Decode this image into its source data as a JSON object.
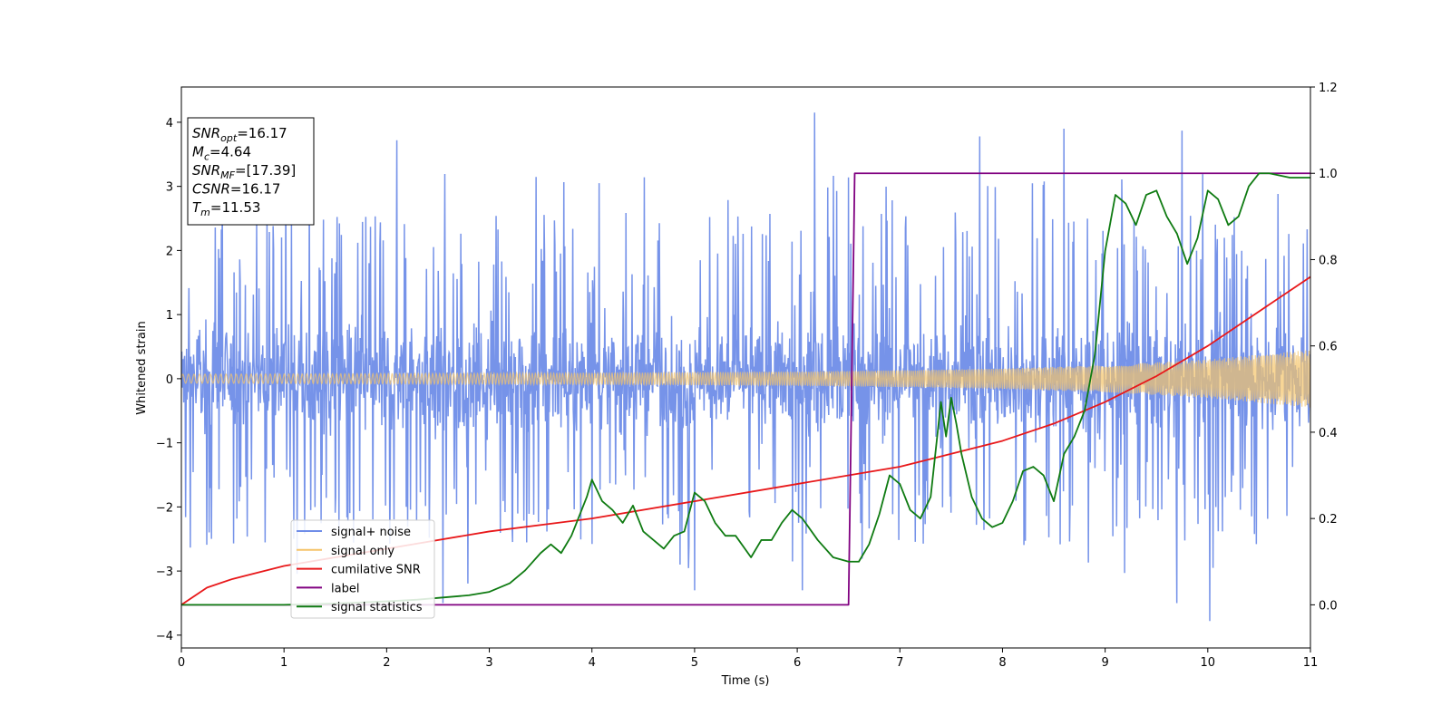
{
  "chart_data": {
    "type": "line",
    "title": "",
    "xlabel": "Time (s)",
    "ylabel": "Whitened strain",
    "xlim": [
      0,
      11
    ],
    "ylim_left": [
      -4.2,
      4.55
    ],
    "ylim_right": [
      -0.1,
      1.2
    ],
    "x_ticks": [
      0,
      1,
      2,
      3,
      4,
      5,
      6,
      7,
      8,
      9,
      10,
      11
    ],
    "y_ticks_left": [
      -4,
      -3,
      -2,
      -1,
      0,
      1,
      2,
      3,
      4
    ],
    "y_ticks_right": [
      0.0,
      0.2,
      0.4,
      0.6,
      0.8,
      1.0,
      1.2
    ],
    "grid": false,
    "legend": {
      "placement": "lower-left",
      "entries": [
        {
          "label": "signal+ noise",
          "color": "#6f8de8"
        },
        {
          "label": "signal only",
          "color": "#f5c46a"
        },
        {
          "label": "cumilative SNR",
          "color": "#e8181a"
        },
        {
          "label": "label",
          "color": "#800080"
        },
        {
          "label": "signal statistics",
          "color": "#0f7b12"
        }
      ]
    },
    "annotation": {
      "lines": [
        {
          "base": "SNR",
          "sub": "opt",
          "rest": "=16.17"
        },
        {
          "base": "M",
          "sub": "c",
          "rest": "=4.64"
        },
        {
          "base": "SNR",
          "sub": "MF",
          "rest": "=[17.39]"
        },
        {
          "base": "CSNR",
          "sub": "",
          "rest": "=16.17"
        },
        {
          "base": "T",
          "sub": "m",
          "rest": "=11.53"
        }
      ]
    },
    "series": [
      {
        "name": "signal+ noise",
        "axis": "left",
        "kind": "noise-band",
        "color": "#6f8de8",
        "x_range": [
          0,
          11
        ],
        "typical_amplitude": 1.3,
        "extremes": [
          {
            "x": 2.1,
            "y": 3.72
          },
          {
            "x": 6.17,
            "y": 4.15
          },
          {
            "x": 7.78,
            "y": 3.78
          },
          {
            "x": 8.6,
            "y": 3.9
          },
          {
            "x": 9.75,
            "y": 3.87
          },
          {
            "x": 10.02,
            "y": -3.78
          },
          {
            "x": 9.7,
            "y": -3.5
          },
          {
            "x": 2.55,
            "y": -3.5
          },
          {
            "x": 6.05,
            "y": -3.3
          },
          {
            "x": 5.0,
            "y": -3.3
          },
          {
            "x": 10.05,
            "y": -2.95
          }
        ]
      },
      {
        "name": "signal only",
        "axis": "left",
        "kind": "envelope",
        "color": "#f5c46a",
        "x": [
          0,
          1,
          2,
          3,
          4,
          5,
          6,
          7,
          8,
          9,
          10,
          11
        ],
        "amplitude": [
          0.07,
          0.075,
          0.08,
          0.085,
          0.09,
          0.1,
          0.11,
          0.13,
          0.16,
          0.21,
          0.3,
          0.45
        ]
      },
      {
        "name": "cumilative SNR",
        "axis": "right",
        "color": "#e8181a",
        "x": [
          0,
          0.25,
          0.5,
          1,
          2,
          3,
          4,
          5,
          6,
          6.5,
          7,
          7.5,
          8,
          8.5,
          9,
          9.5,
          10,
          10.5,
          11
        ],
        "y": [
          0.0,
          0.04,
          0.06,
          0.09,
          0.13,
          0.17,
          0.2,
          0.24,
          0.28,
          0.3,
          0.32,
          0.35,
          0.38,
          0.42,
          0.47,
          0.53,
          0.6,
          0.68,
          0.76
        ]
      },
      {
        "name": "label",
        "axis": "right",
        "color": "#800080",
        "x": [
          0,
          6.5,
          6.56,
          11
        ],
        "y": [
          0.0,
          0.0,
          1.0,
          1.0
        ]
      },
      {
        "name": "signal statistics",
        "axis": "right",
        "color": "#0f7b12",
        "x": [
          0,
          0.5,
          1,
          1.5,
          2,
          2.3,
          2.6,
          2.8,
          3.0,
          3.2,
          3.35,
          3.5,
          3.6,
          3.7,
          3.8,
          3.95,
          4.0,
          4.1,
          4.2,
          4.3,
          4.4,
          4.5,
          4.6,
          4.7,
          4.8,
          4.9,
          5.0,
          5.1,
          5.2,
          5.3,
          5.4,
          5.55,
          5.65,
          5.75,
          5.85,
          5.95,
          6.05,
          6.2,
          6.35,
          6.5,
          6.6,
          6.7,
          6.8,
          6.9,
          7.0,
          7.1,
          7.2,
          7.3,
          7.4,
          7.45,
          7.5,
          7.55,
          7.6,
          7.7,
          7.8,
          7.9,
          8.0,
          8.1,
          8.2,
          8.3,
          8.4,
          8.5,
          8.6,
          8.7,
          8.8,
          8.9,
          9.0,
          9.1,
          9.2,
          9.3,
          9.4,
          9.5,
          9.6,
          9.7,
          9.8,
          9.9,
          10.0,
          10.1,
          10.2,
          10.3,
          10.4,
          10.5,
          10.6,
          10.8,
          11.0
        ],
        "y": [
          0.0,
          0.0,
          0.0,
          0.003,
          0.008,
          0.012,
          0.018,
          0.022,
          0.03,
          0.05,
          0.08,
          0.12,
          0.14,
          0.12,
          0.16,
          0.25,
          0.29,
          0.24,
          0.22,
          0.19,
          0.23,
          0.17,
          0.15,
          0.13,
          0.16,
          0.17,
          0.26,
          0.24,
          0.19,
          0.16,
          0.16,
          0.11,
          0.15,
          0.15,
          0.19,
          0.22,
          0.2,
          0.15,
          0.11,
          0.1,
          0.1,
          0.14,
          0.21,
          0.3,
          0.28,
          0.22,
          0.2,
          0.25,
          0.47,
          0.39,
          0.48,
          0.42,
          0.35,
          0.25,
          0.2,
          0.18,
          0.19,
          0.24,
          0.31,
          0.32,
          0.3,
          0.24,
          0.35,
          0.39,
          0.45,
          0.58,
          0.82,
          0.95,
          0.93,
          0.88,
          0.95,
          0.96,
          0.9,
          0.86,
          0.79,
          0.85,
          0.96,
          0.94,
          0.88,
          0.9,
          0.97,
          1.0,
          1.0,
          0.99,
          0.99
        ]
      }
    ]
  }
}
